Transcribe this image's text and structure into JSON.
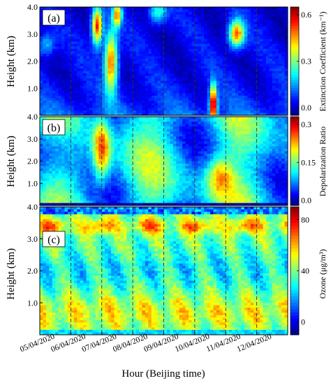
{
  "chart_data": [
    {
      "type": "heatmap",
      "panel_label": "(a)",
      "ylabel": "Height (km)",
      "yticks": [
        "1.0",
        "2.0",
        "3.0",
        "4.0"
      ],
      "ylim": [
        0,
        4
      ],
      "colorbar": {
        "label": "Extinction Coefficient (km⁻¹)",
        "ticks": [
          "0.0",
          "0.3",
          "0.6"
        ],
        "range": [
          -0.05,
          0.65
        ]
      },
      "hotspots": [
        {
          "day": 1.8,
          "height": 3.6,
          "value": 0.62
        },
        {
          "day": 2.2,
          "height": 2.0,
          "value": 0.55
        },
        {
          "day": 2.5,
          "height": 3.7,
          "value": 0.6
        },
        {
          "day": 5.6,
          "height": 0.3,
          "value": 0.62
        },
        {
          "day": 6.3,
          "height": 3.0,
          "value": 0.58
        },
        {
          "day": 6.5,
          "height": 2.6,
          "value": 0.5
        }
      ]
    },
    {
      "type": "heatmap",
      "panel_label": "(b)",
      "ylabel": "Height (km)",
      "yticks": [
        "1.0",
        "2.0",
        "3.0",
        "4.0"
      ],
      "ylim": [
        0,
        4
      ],
      "colorbar": {
        "label": "Depolarization Ratio",
        "ticks": [
          "0.0",
          "0.15",
          "0.3"
        ],
        "range": [
          -0.02,
          0.33
        ]
      },
      "hotspots": [
        {
          "day": 2.0,
          "height": 3.0,
          "value": 0.3
        },
        {
          "day": 2.1,
          "height": 1.8,
          "value": 0.27
        },
        {
          "day": 5.8,
          "height": 1.2,
          "value": 0.22
        }
      ]
    },
    {
      "type": "heatmap",
      "panel_label": "(c)",
      "ylabel": "Height (km)",
      "yticks": [
        "1.0",
        "2.0",
        "3.0",
        "4.0"
      ],
      "ylim": [
        0,
        4
      ],
      "colorbar": {
        "label": "Ozone (μg/m³)",
        "ticks": [
          "0",
          "40",
          "80"
        ],
        "range": [
          -10,
          90
        ]
      },
      "hotspots": [
        {
          "day": 2.0,
          "height": 0.8,
          "value": 55
        },
        {
          "day": 4.0,
          "height": 3.4,
          "value": 80
        }
      ]
    }
  ],
  "xaxis": {
    "label": "Hour (Beijing time)",
    "ticks": [
      "05/04/2020",
      "06/04/2020",
      "07/04/2020",
      "08/04/2020",
      "09/04/2020",
      "10/04/2020",
      "11/04/2020",
      "12/04/2020"
    ],
    "range_days": [
      0,
      8
    ]
  },
  "colors": {
    "dark_blue": "#0a18a8",
    "dark_red": "#7a0000",
    "grid_dash": "#333333"
  }
}
